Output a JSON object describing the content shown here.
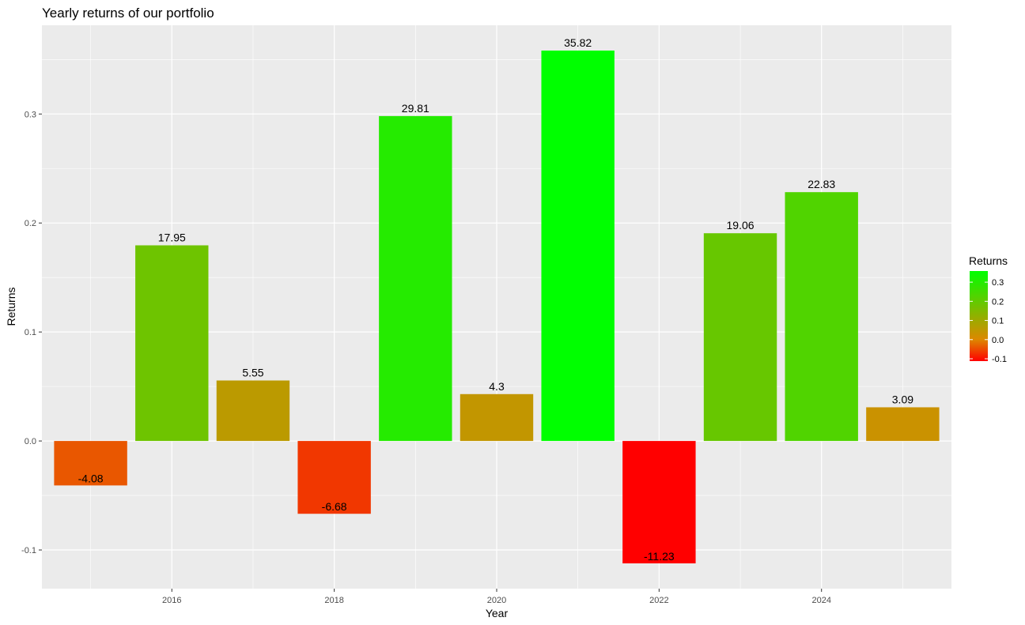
{
  "chart_data": {
    "type": "bar",
    "title": "Yearly returns of our portfolio",
    "xlabel": "Year",
    "ylabel": "Returns",
    "x": [
      2015,
      2016,
      2017,
      2018,
      2019,
      2020,
      2021,
      2022,
      2023,
      2024,
      2025
    ],
    "values": [
      -0.0408,
      0.1795,
      0.0555,
      -0.0668,
      0.2981,
      0.043,
      0.3582,
      -0.1123,
      0.1906,
      0.2283,
      0.0309
    ],
    "data_labels": [
      "-4.08",
      "17.95",
      "5.55",
      "-6.68",
      "29.81",
      "4.3",
      "35.82",
      "-11.23",
      "19.06",
      "22.83",
      "3.09"
    ],
    "xticks": [
      "2016",
      "2018",
      "2020",
      "2022",
      "2024"
    ],
    "yticks": [
      "-0.1",
      "0.0",
      "0.1",
      "0.2",
      "0.3"
    ],
    "ylim": [
      -0.1355,
      0.3814
    ],
    "xlim": [
      2014.4,
      2025.6
    ],
    "grid": true,
    "legend": {
      "title": "Returns",
      "placement": "right",
      "ticks": [
        "0.3",
        "0.2",
        "0.1",
        "0.0",
        "-0.1"
      ],
      "colors": [
        "#ff0000",
        "#dd8800",
        "#00ff00"
      ]
    },
    "colors": {
      "panel_background": "#ebebeb",
      "grid_major": "#ffffff",
      "low": "#ff0000",
      "mid": "#dd8800",
      "high": "#00ff00"
    }
  }
}
